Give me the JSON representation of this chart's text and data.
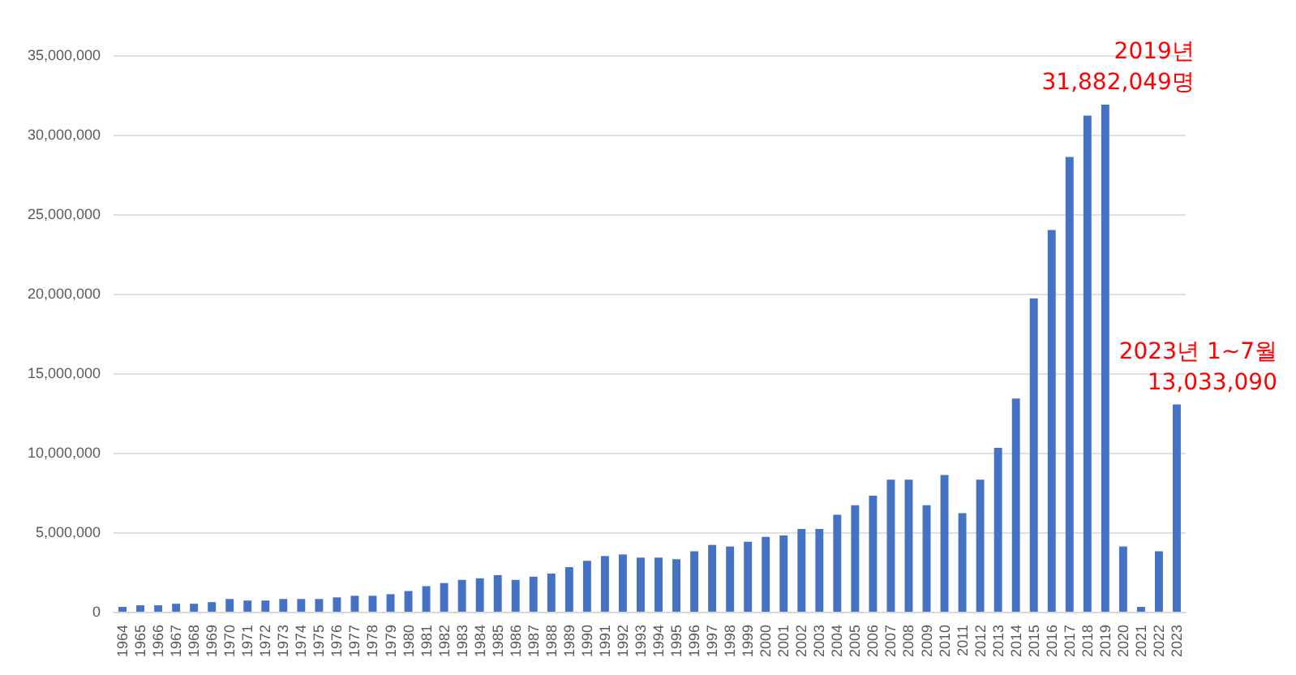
{
  "chart_data": {
    "type": "bar",
    "categories": [
      "1964",
      "1965",
      "1966",
      "1967",
      "1968",
      "1969",
      "1970",
      "1971",
      "1972",
      "1973",
      "1974",
      "1975",
      "1976",
      "1977",
      "1978",
      "1979",
      "1980",
      "1981",
      "1982",
      "1983",
      "1984",
      "1985",
      "1986",
      "1987",
      "1988",
      "1989",
      "1990",
      "1991",
      "1992",
      "1993",
      "1994",
      "1995",
      "1996",
      "1997",
      "1998",
      "1999",
      "2000",
      "2001",
      "2002",
      "2003",
      "2004",
      "2005",
      "2006",
      "2007",
      "2008",
      "2009",
      "2010",
      "2011",
      "2012",
      "2013",
      "2014",
      "2015",
      "2016",
      "2017",
      "2018",
      "2019",
      "2020",
      "2021",
      "2022",
      "2023"
    ],
    "values": [
      300000,
      400000,
      400000,
      500000,
      500000,
      600000,
      800000,
      700000,
      700000,
      800000,
      800000,
      800000,
      900000,
      1000000,
      1000000,
      1100000,
      1300000,
      1600000,
      1800000,
      2000000,
      2100000,
      2300000,
      2000000,
      2200000,
      2400000,
      2800000,
      3200000,
      3500000,
      3600000,
      3400000,
      3400000,
      3300000,
      3800000,
      4200000,
      4100000,
      4400000,
      4700000,
      4800000,
      5200000,
      5200000,
      6100000,
      6700000,
      7300000,
      8300000,
      8300000,
      6700000,
      8600000,
      6200000,
      8300000,
      10300000,
      13400000,
      19700000,
      24000000,
      28600000,
      31200000,
      31882049,
      4100000,
      300000,
      3800000,
      13033090
    ],
    "color": "#4472c4",
    "ylim": [
      0,
      35000000
    ],
    "yticks": [
      0,
      {
        "value": 5000000,
        "label": "5,000,000"
      },
      {
        "value": 10000000,
        "label": "10,000,000"
      },
      {
        "value": 15000000,
        "label": "15,000,000"
      },
      {
        "value": 20000000,
        "label": "20,000,000"
      },
      {
        "value": 25000000,
        "label": "25,000,000"
      },
      {
        "value": 30000000,
        "label": "30,000,000"
      },
      {
        "value": 35000000,
        "label": "35,000,000"
      }
    ],
    "grid": "y",
    "annotations": [
      {
        "text": "2019년\n31,882,049명",
        "x": "2019",
        "y": 31882049
      },
      {
        "text": "2023년 1~7월\n13,033,090",
        "x": "2023",
        "y": 13033090
      }
    ]
  }
}
